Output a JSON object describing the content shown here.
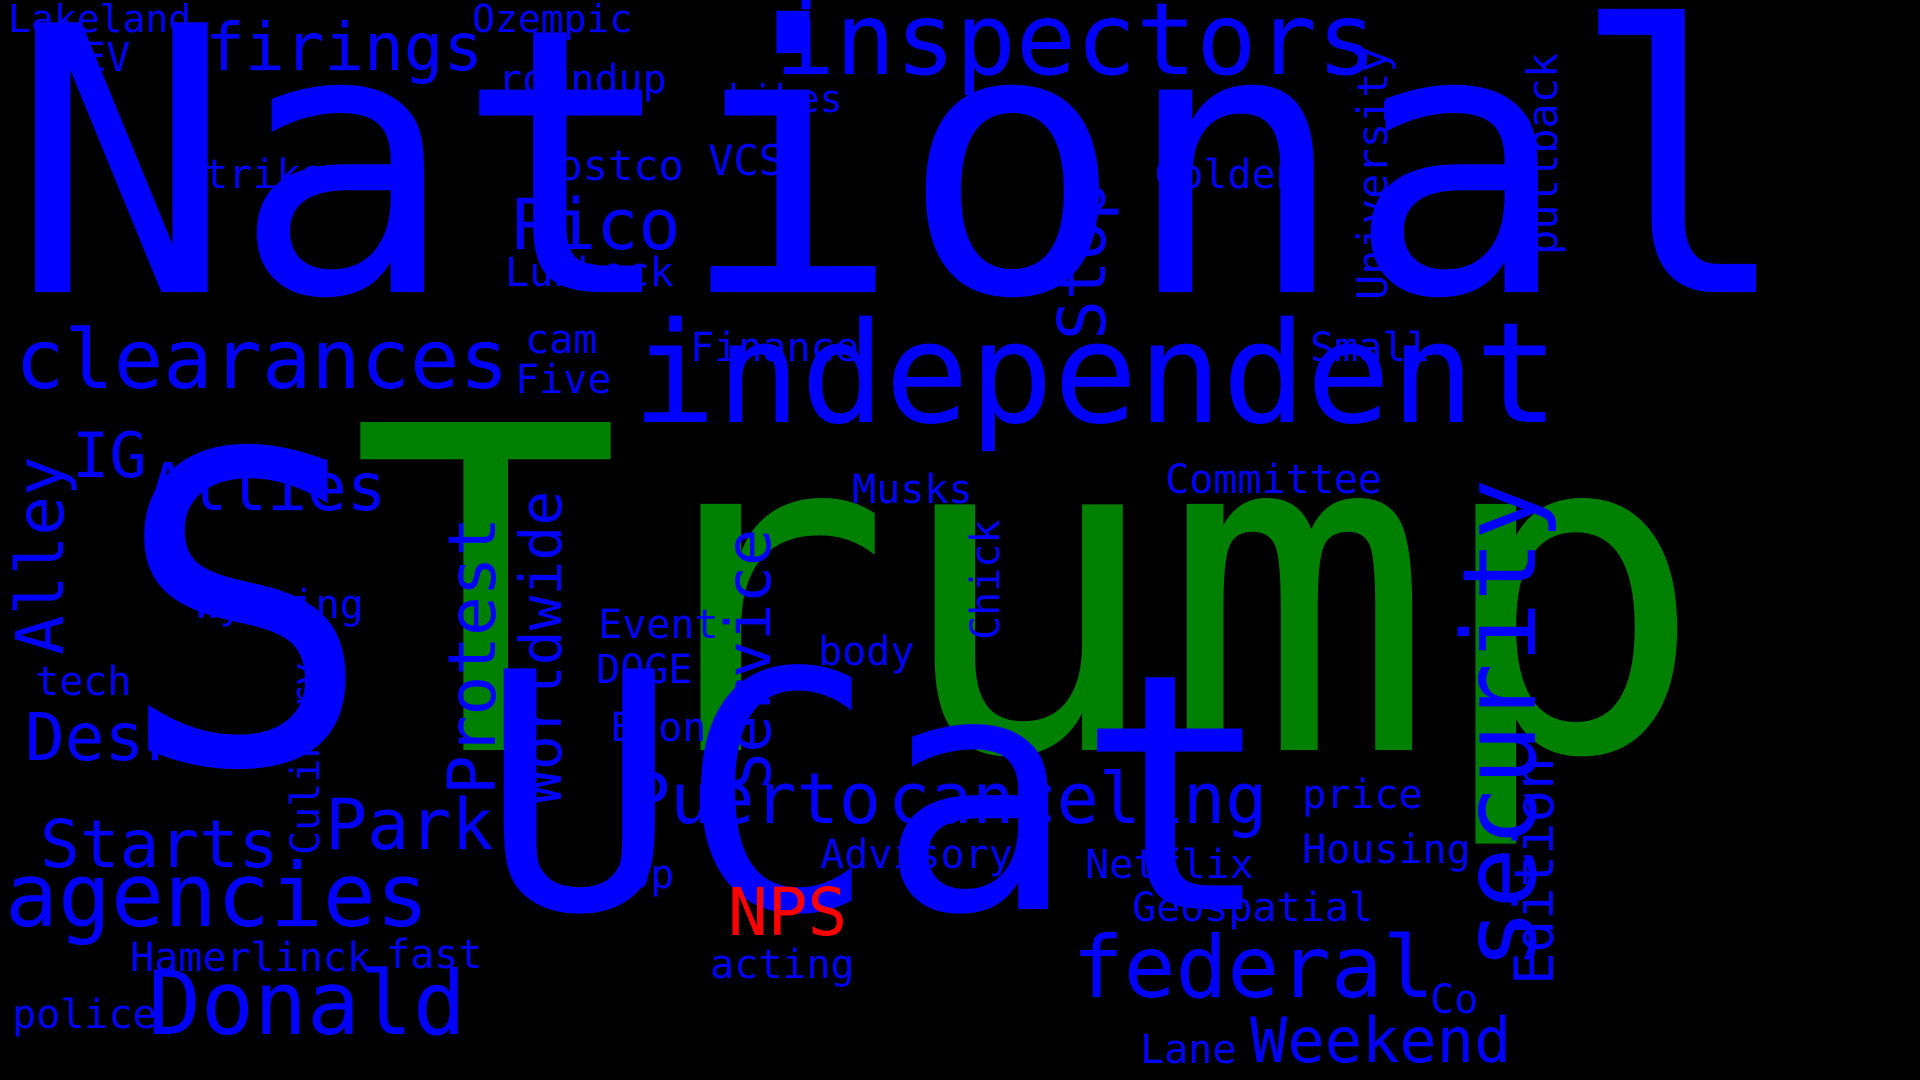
{
  "colors": {
    "background": "#000000",
    "default": "#0000ff",
    "green": "#008000",
    "red": "#ff0000"
  },
  "words": [
    {
      "text": "National",
      "color": "default"
    },
    {
      "text": "Trump",
      "color": "green"
    },
    {
      "text": "S",
      "color": "default"
    },
    {
      "text": "UCat",
      "color": "default"
    },
    {
      "text": "inspectors",
      "color": "default"
    },
    {
      "text": "independent",
      "color": "default"
    },
    {
      "text": "clearances",
      "color": "default"
    },
    {
      "text": "security",
      "color": "default"
    },
    {
      "text": "agencies",
      "color": "default"
    },
    {
      "text": "Donald",
      "color": "default"
    },
    {
      "text": "federal",
      "color": "default"
    },
    {
      "text": "Weekend",
      "color": "default"
    },
    {
      "text": "Puerto",
      "color": "default"
    },
    {
      "text": "canceling",
      "color": "default"
    },
    {
      "text": "Edition",
      "color": "default"
    },
    {
      "text": "Service",
      "color": "default"
    },
    {
      "text": "Worldwide",
      "color": "default"
    },
    {
      "text": "Protest",
      "color": "default"
    },
    {
      "text": "Allies",
      "color": "default"
    },
    {
      "text": "Alley",
      "color": "default"
    },
    {
      "text": "Park",
      "color": "default"
    },
    {
      "text": "Starts",
      "color": "default"
    },
    {
      "text": "Desk",
      "color": "default"
    },
    {
      "text": "Rico",
      "color": "default"
    },
    {
      "text": "firings",
      "color": "default"
    },
    {
      "text": "Stop",
      "color": "default"
    },
    {
      "text": "IG",
      "color": "default"
    },
    {
      "text": "NPS",
      "color": "red"
    },
    {
      "text": "University",
      "color": "default"
    },
    {
      "text": "pullback",
      "color": "default"
    },
    {
      "text": "Lakeland",
      "color": "default"
    },
    {
      "text": "EV",
      "color": "default"
    },
    {
      "text": "Ozempic",
      "color": "default"
    },
    {
      "text": "roundup",
      "color": "default"
    },
    {
      "text": "hikes",
      "color": "default"
    },
    {
      "text": "strike",
      "color": "default"
    },
    {
      "text": "Costco",
      "color": "default"
    },
    {
      "text": "VCSU",
      "color": "default"
    },
    {
      "text": "Golden",
      "color": "default"
    },
    {
      "text": "Lubbock",
      "color": "default"
    },
    {
      "text": "cam",
      "color": "default"
    },
    {
      "text": "Finance",
      "color": "default"
    },
    {
      "text": "Small",
      "color": "default"
    },
    {
      "text": "Five",
      "color": "default"
    },
    {
      "text": "Musks",
      "color": "default"
    },
    {
      "text": "Committee",
      "color": "default"
    },
    {
      "text": "Chick",
      "color": "default"
    },
    {
      "text": "Wyoming",
      "color": "default"
    },
    {
      "text": "Event",
      "color": "default"
    },
    {
      "text": "body",
      "color": "default"
    },
    {
      "text": "DOGE",
      "color": "default"
    },
    {
      "text": "tech",
      "color": "default"
    },
    {
      "text": "Culinary",
      "color": "default"
    },
    {
      "text": "Elon",
      "color": "default"
    },
    {
      "text": "price",
      "color": "default"
    },
    {
      "text": "Housing",
      "color": "default"
    },
    {
      "text": "Advisory",
      "color": "default"
    },
    {
      "text": "Netflix",
      "color": "default"
    },
    {
      "text": "Op",
      "color": "default"
    },
    {
      "text": "Geospatial",
      "color": "default"
    },
    {
      "text": "Hamerlinck",
      "color": "default"
    },
    {
      "text": "fast",
      "color": "default"
    },
    {
      "text": "acting",
      "color": "default"
    },
    {
      "text": "police",
      "color": "default"
    },
    {
      "text": "Co",
      "color": "default"
    },
    {
      "text": "Lane",
      "color": "default"
    }
  ]
}
